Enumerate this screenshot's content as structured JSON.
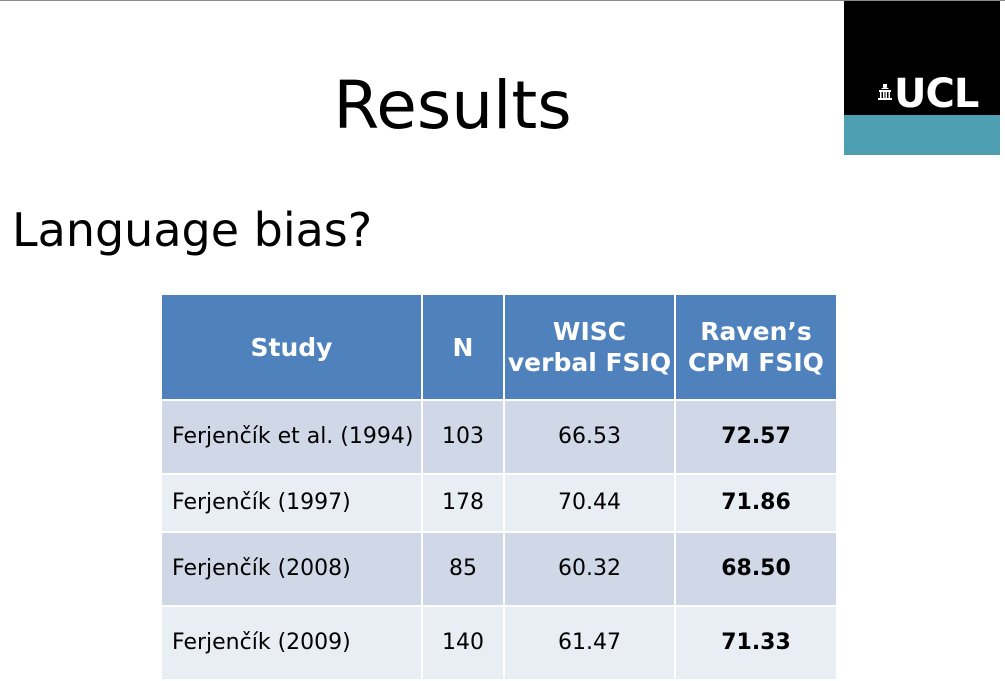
{
  "slide": {
    "title": "Results",
    "subtitle": "Language bias?"
  },
  "logo": {
    "text": "UCL",
    "icon": "portico-icon",
    "colors": {
      "top": "#000000",
      "bottom": "#4f9fb2"
    }
  },
  "table": {
    "headers": {
      "study": "Study",
      "n": "N",
      "wisc": "WISC verbal FSIQ",
      "raven": "Raven’s CPM FSIQ"
    },
    "rows": [
      {
        "study": "Ferjenčík  et al. (1994)",
        "n": "103",
        "wisc": "66.53",
        "raven": "72.57"
      },
      {
        "study": "Ferjenčík (1997)",
        "n": "178",
        "wisc": "70.44",
        "raven": "71.86"
      },
      {
        "study": "Ferjenčík (2008)",
        "n": "85",
        "wisc": "60.32",
        "raven": "68.50"
      },
      {
        "study": "Ferjenčík (2009)",
        "n": "140",
        "wisc": "61.47",
        "raven": "71.33"
      }
    ],
    "colors": {
      "header": "#4f81bd",
      "row_odd": "#d0d8e8",
      "row_even": "#e9edf4"
    }
  }
}
